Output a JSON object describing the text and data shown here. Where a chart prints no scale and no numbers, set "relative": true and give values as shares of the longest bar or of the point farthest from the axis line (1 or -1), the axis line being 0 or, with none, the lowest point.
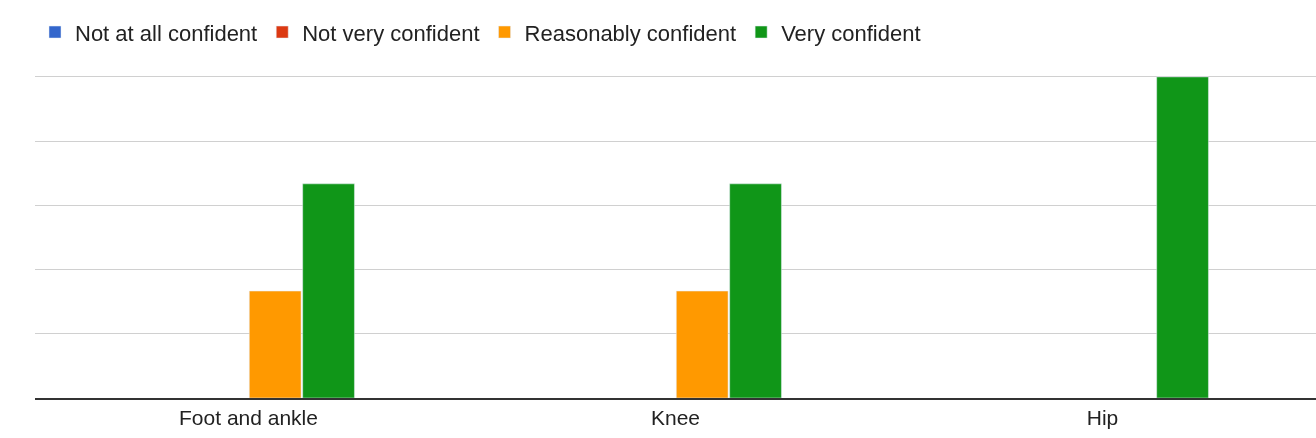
{
  "chart_data": {
    "type": "bar",
    "relative": true,
    "categories": [
      "Foot and ankle",
      "Knee",
      "Hip"
    ],
    "series": [
      {
        "name": "Not at all confident",
        "color": "#3366cc",
        "values": [
          null,
          null,
          null
        ]
      },
      {
        "name": "Not very confident",
        "color": "#dc3912",
        "values": [
          null,
          null,
          null
        ]
      },
      {
        "name": "Reasonably confident",
        "color": "#ff9900",
        "values": [
          0.333,
          0.333,
          null
        ]
      },
      {
        "name": "Very confident",
        "color": "#109618",
        "values": [
          0.667,
          0.667,
          1
        ]
      }
    ],
    "grid": "y",
    "legend": "top left"
  }
}
